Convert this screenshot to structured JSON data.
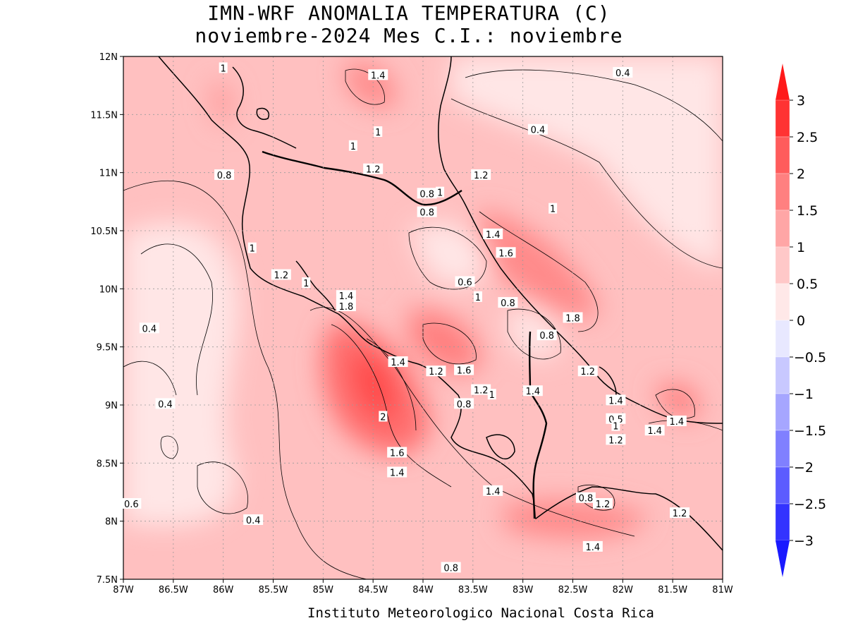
{
  "title_line1": "IMN-WRF  ANOMALIA TEMPERATURA (C)",
  "title_line2": "noviembre-2024 Mes C.I.: noviembre",
  "credit": "Instituto Meteorologico Nacional Costa Rica",
  "x_ticks": [
    "87W",
    "86.5W",
    "86W",
    "85.5W",
    "85W",
    "84.5W",
    "84W",
    "83.5W",
    "83W",
    "82.5W",
    "82W",
    "81.5W",
    "81W"
  ],
  "y_ticks": [
    "12N",
    "11.5N",
    "11N",
    "10.5N",
    "10N",
    "9.5N",
    "9N",
    "8.5N",
    "8N",
    "7.5N"
  ],
  "colorbar": {
    "labels": [
      "3",
      "2.5",
      "2",
      "1.5",
      "1",
      "0.5",
      "0",
      "-0.5",
      "-1",
      "-1.5",
      "-2",
      "-2.5",
      "-3"
    ],
    "colors": [
      "#ff1a1a",
      "#ff3333",
      "#ff5c5c",
      "#ff8080",
      "#ffa6a6",
      "#ffc8c8",
      "#ffe8e8",
      "#e8e8ff",
      "#c8c8ff",
      "#a6a6ff",
      "#8080ff",
      "#5c5cff",
      "#3333ff",
      "#1a1aff"
    ]
  },
  "contour_labels": [
    {
      "text": "1",
      "lon": -86.0,
      "lat": 11.9
    },
    {
      "text": "1.4",
      "lon": -84.45,
      "lat": 11.84
    },
    {
      "text": "0.4",
      "lon": -82.0,
      "lat": 11.86
    },
    {
      "text": "1",
      "lon": -84.45,
      "lat": 11.35
    },
    {
      "text": "0.4",
      "lon": -82.85,
      "lat": 11.37
    },
    {
      "text": "1",
      "lon": -84.7,
      "lat": 11.23
    },
    {
      "text": "1.2",
      "lon": -84.5,
      "lat": 11.03
    },
    {
      "text": "0.8",
      "lon": -85.99,
      "lat": 10.98
    },
    {
      "text": "1.2",
      "lon": -83.42,
      "lat": 10.98
    },
    {
      "text": "0.8",
      "lon": -83.96,
      "lat": 10.82
    },
    {
      "text": "1",
      "lon": -83.83,
      "lat": 10.83
    },
    {
      "text": "0.8",
      "lon": -83.96,
      "lat": 10.66
    },
    {
      "text": "1",
      "lon": -82.7,
      "lat": 10.69
    },
    {
      "text": "1.4",
      "lon": -83.3,
      "lat": 10.47
    },
    {
      "text": "1.6",
      "lon": -83.17,
      "lat": 10.31
    },
    {
      "text": "1",
      "lon": -85.71,
      "lat": 10.35
    },
    {
      "text": "1.2",
      "lon": -85.42,
      "lat": 10.12
    },
    {
      "text": "1",
      "lon": -85.17,
      "lat": 10.05
    },
    {
      "text": "0.6",
      "lon": -83.58,
      "lat": 10.06
    },
    {
      "text": "1.4",
      "lon": -84.77,
      "lat": 9.94
    },
    {
      "text": "1",
      "lon": -83.45,
      "lat": 9.93
    },
    {
      "text": "0.8",
      "lon": -83.15,
      "lat": 9.88
    },
    {
      "text": "1.8",
      "lon": -84.77,
      "lat": 9.85
    },
    {
      "text": "1.8",
      "lon": -82.5,
      "lat": 9.75
    },
    {
      "text": "0.8",
      "lon": -82.76,
      "lat": 9.6
    },
    {
      "text": "0.4",
      "lon": -86.74,
      "lat": 9.66
    },
    {
      "text": "1.4",
      "lon": -84.25,
      "lat": 9.37
    },
    {
      "text": "1.2",
      "lon": -83.87,
      "lat": 9.29
    },
    {
      "text": "1.6",
      "lon": -83.59,
      "lat": 9.3
    },
    {
      "text": "1.2",
      "lon": -82.35,
      "lat": 9.29
    },
    {
      "text": "1.2",
      "lon": -83.42,
      "lat": 9.13
    },
    {
      "text": "1",
      "lon": -83.31,
      "lat": 9.09
    },
    {
      "text": "1.4",
      "lon": -82.9,
      "lat": 9.12
    },
    {
      "text": "1.4",
      "lon": -82.07,
      "lat": 9.04
    },
    {
      "text": "0.4",
      "lon": -86.58,
      "lat": 9.01
    },
    {
      "text": "0.8",
      "lon": -83.59,
      "lat": 9.01
    },
    {
      "text": "2",
      "lon": -84.4,
      "lat": 8.9
    },
    {
      "text": "0.5",
      "lon": -82.07,
      "lat": 8.88
    },
    {
      "text": "1",
      "lon": -82.07,
      "lat": 8.82
    },
    {
      "text": "1.4",
      "lon": -81.46,
      "lat": 8.86
    },
    {
      "text": "1.4",
      "lon": -81.68,
      "lat": 8.78
    },
    {
      "text": "1.2",
      "lon": -82.07,
      "lat": 8.7
    },
    {
      "text": "1.6",
      "lon": -84.26,
      "lat": 8.59
    },
    {
      "text": "1.4",
      "lon": -84.26,
      "lat": 8.42
    },
    {
      "text": "1.4",
      "lon": -83.3,
      "lat": 8.26
    },
    {
      "text": "0.8",
      "lon": -82.37,
      "lat": 8.2
    },
    {
      "text": "1.2",
      "lon": -82.2,
      "lat": 8.15
    },
    {
      "text": "0.6",
      "lon": -86.92,
      "lat": 8.15
    },
    {
      "text": "1.2",
      "lon": -81.43,
      "lat": 8.07
    },
    {
      "text": "0.4",
      "lon": -85.7,
      "lat": 8.01
    },
    {
      "text": "1.4",
      "lon": -82.3,
      "lat": 7.78
    },
    {
      "text": "0.8",
      "lon": -83.72,
      "lat": 7.6
    }
  ]
}
